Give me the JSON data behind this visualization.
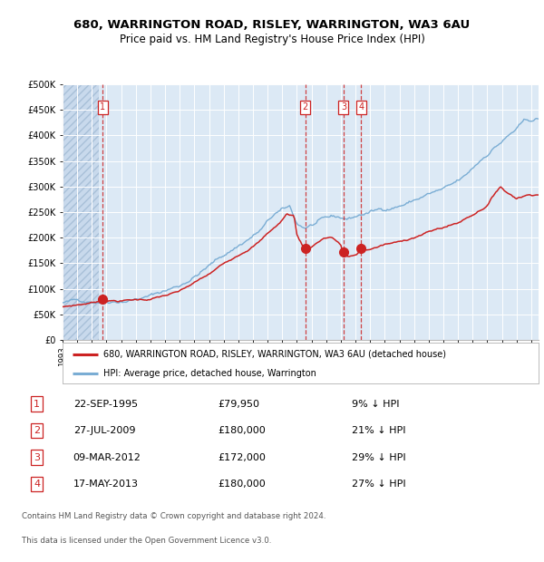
{
  "title1": "680, WARRINGTON ROAD, RISLEY, WARRINGTON, WA3 6AU",
  "title2": "Price paid vs. HM Land Registry's House Price Index (HPI)",
  "legend1": "680, WARRINGTON ROAD, RISLEY, WARRINGTON, WA3 6AU (detached house)",
  "legend2": "HPI: Average price, detached house, Warrington",
  "footer1": "Contains HM Land Registry data © Crown copyright and database right 2024.",
  "footer2": "This data is licensed under the Open Government Licence v3.0.",
  "transactions": [
    {
      "num": 1,
      "date": "22-SEP-1995",
      "price": 79950,
      "pct": "9%",
      "dir": "↓",
      "year": 1995.73
    },
    {
      "num": 2,
      "date": "27-JUL-2009",
      "price": 180000,
      "pct": "21%",
      "dir": "↓",
      "year": 2009.57
    },
    {
      "num": 3,
      "date": "09-MAR-2012",
      "price": 172000,
      "pct": "29%",
      "dir": "↓",
      "year": 2012.19
    },
    {
      "num": 4,
      "date": "17-MAY-2013",
      "price": 180000,
      "pct": "27%",
      "dir": "↓",
      "year": 2013.38
    }
  ],
  "hpi_color": "#7aadd4",
  "price_color": "#cc2222",
  "bg_color": "#dce9f5",
  "ylim": [
    0,
    500000
  ],
  "xlim_start": 1993.0,
  "xlim_end": 2025.5
}
